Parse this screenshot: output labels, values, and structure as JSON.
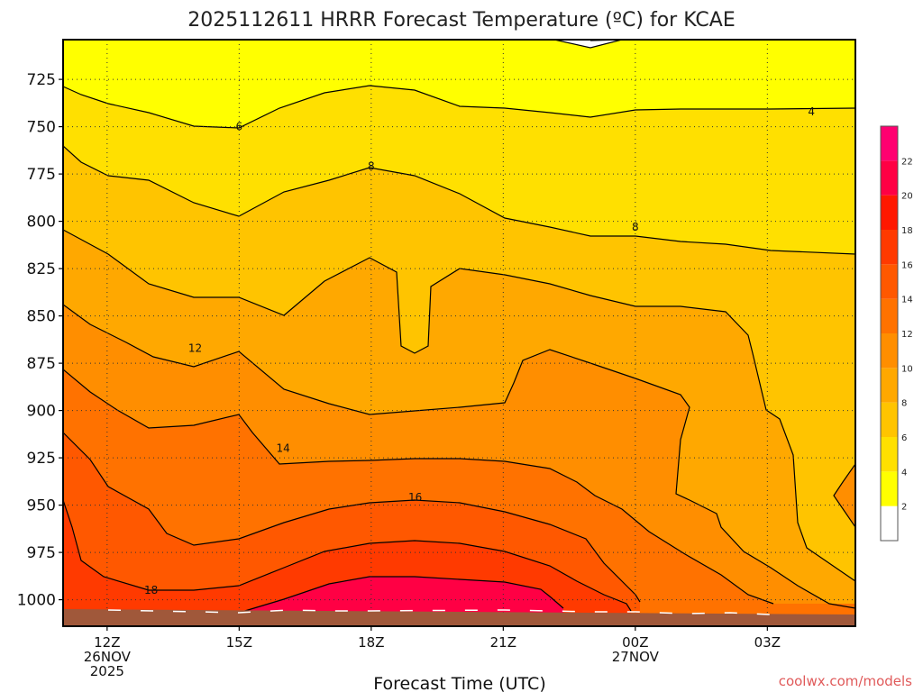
{
  "chart_data": {
    "type": "contour",
    "title": "2025112611 HRRR Forecast Temperature (ºC) for KCAE",
    "xlabel": "Forecast Time (UTC)",
    "ylabel": "",
    "credit": "coolwx.com/models",
    "x_ticks": [
      {
        "hour": 12,
        "lines": [
          "12Z",
          "26NOV",
          "2025"
        ]
      },
      {
        "hour": 15,
        "lines": [
          "15Z"
        ]
      },
      {
        "hour": 18,
        "lines": [
          "18Z"
        ]
      },
      {
        "hour": 21,
        "lines": [
          "21Z"
        ]
      },
      {
        "hour": 24,
        "lines": [
          "00Z",
          "27NOV"
        ]
      },
      {
        "hour": 27,
        "lines": [
          "03Z"
        ]
      }
    ],
    "xlim": [
      11,
      29
    ],
    "y_ticks": [
      725,
      750,
      775,
      800,
      825,
      850,
      875,
      900,
      925,
      950,
      975,
      1000
    ],
    "ylim": [
      1014,
      704
    ],
    "y_scale": "pressure (hPa), inverted",
    "levels": [
      2,
      4,
      6,
      8,
      10,
      12,
      14,
      16,
      18,
      20,
      22
    ],
    "colorbar": {
      "labels": [
        "2",
        "4",
        "6",
        "8",
        "10",
        "12",
        "14",
        "16",
        "18",
        "20",
        "22"
      ],
      "colors": [
        "#ffffff",
        "#ffff00",
        "#ffe000",
        "#ffc400",
        "#ffa800",
        "#ff8e00",
        "#ff7200",
        "#ff5800",
        "#ff3a00",
        "#ff1800",
        "#ff0044",
        "#ff0070"
      ]
    },
    "contour_labels": [
      {
        "text": "4",
        "hour": 28.0,
        "p": 742
      },
      {
        "text": "6",
        "hour": 15.0,
        "p": 750
      },
      {
        "text": "8",
        "hour": 18.0,
        "p": 771
      },
      {
        "text": "8",
        "hour": 24.0,
        "p": 803
      },
      {
        "text": "12",
        "hour": 14.0,
        "p": 867
      },
      {
        "text": "14",
        "hour": 16.0,
        "p": 920
      },
      {
        "text": "16",
        "hour": 19.0,
        "p": 946
      },
      {
        "text": "18",
        "hour": 13.0,
        "p": 995
      }
    ],
    "grid": true
  }
}
